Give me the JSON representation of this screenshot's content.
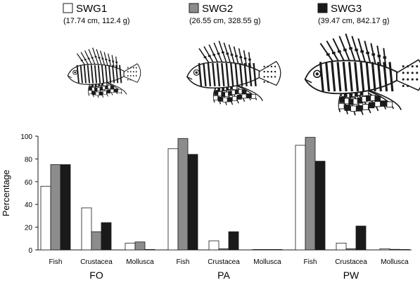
{
  "legend": [
    {
      "name": "SWG1",
      "detail": "(17.74 cm, 112.4 g)",
      "color": "#ffffff"
    },
    {
      "name": "SWG2",
      "detail": "(26.55 cm, 328.55 g)",
      "color": "#8c8c8c"
    },
    {
      "name": "SWG3",
      "detail": "(39.47 cm, 842.17 g)",
      "color": "#1a1a1a"
    }
  ],
  "illustrations": [
    {
      "name": "lionfish-small-illustration",
      "size": "SWG1"
    },
    {
      "name": "lionfish-medium-illustration",
      "size": "SWG2"
    },
    {
      "name": "lionfish-large-illustration",
      "size": "SWG3"
    }
  ],
  "chart_data": {
    "type": "bar",
    "ylabel": "Percentage",
    "ylim": [
      0,
      100
    ],
    "yticks": [
      0,
      20,
      40,
      60,
      80,
      100
    ],
    "grid": false,
    "legend_position": "top",
    "series_names": [
      "SWG1",
      "SWG2",
      "SWG3"
    ],
    "panels": [
      {
        "label": "FO",
        "categories": [
          "Fish",
          "Crustacea",
          "Mollusca"
        ],
        "series": [
          {
            "name": "SWG1",
            "values": [
              56,
              37,
              6
            ]
          },
          {
            "name": "SWG2",
            "values": [
              75,
              16,
              7
            ]
          },
          {
            "name": "SWG3",
            "values": [
              75,
              24,
              0
            ]
          }
        ]
      },
      {
        "label": "PA",
        "categories": [
          "Fish",
          "Crustacea",
          "Mollusca"
        ],
        "series": [
          {
            "name": "SWG1",
            "values": [
              89,
              8,
              0.3
            ]
          },
          {
            "name": "SWG2",
            "values": [
              98,
              1,
              0.3
            ]
          },
          {
            "name": "SWG3",
            "values": [
              84,
              16,
              0
            ]
          }
        ]
      },
      {
        "label": "PW",
        "categories": [
          "Fish",
          "Crustacea",
          "Mollusca"
        ],
        "series": [
          {
            "name": "SWG1",
            "values": [
              92,
              6,
              1
            ]
          },
          {
            "name": "SWG2",
            "values": [
              99,
              1,
              0.5
            ]
          },
          {
            "name": "SWG3",
            "values": [
              78,
              21,
              0
            ]
          }
        ]
      }
    ]
  }
}
